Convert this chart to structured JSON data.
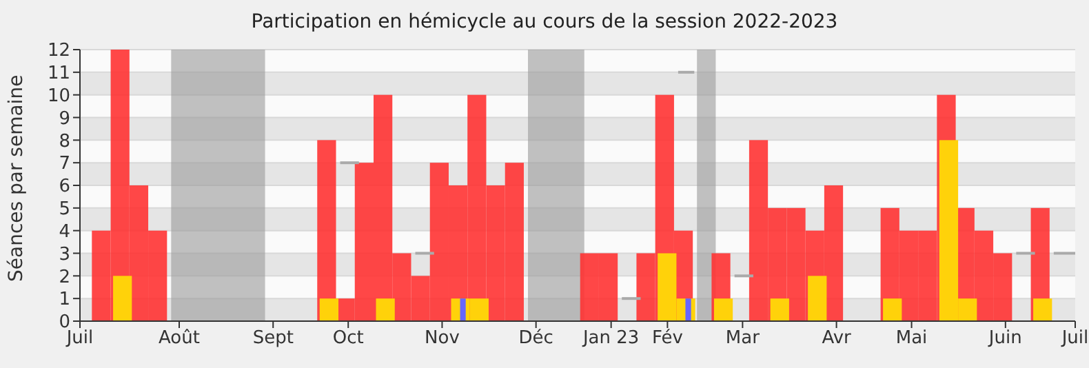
{
  "chart_data": {
    "type": "bar",
    "title": "Participation en hémicycle au cours de la session 2022-2023",
    "ylabel": "Séances par semaine",
    "x": [
      "2022-07-07",
      "2022-07-14",
      "2022-07-21",
      "2022-07-28",
      "2022-08-04",
      "2022-08-11",
      "2022-08-18",
      "2022-08-25",
      "2022-09-01",
      "2022-09-08",
      "2022-09-15",
      "2022-09-22",
      "2022-09-29",
      "2022-10-06",
      "2022-10-13",
      "2022-10-20",
      "2022-10-27",
      "2022-11-03",
      "2022-11-10",
      "2022-11-17",
      "2022-11-24",
      "2022-12-01",
      "2022-12-08",
      "2022-12-15",
      "2022-12-22",
      "2022-12-29",
      "2023-01-05",
      "2023-01-12",
      "2023-01-19",
      "2023-01-26",
      "2023-02-02",
      "2023-02-09",
      "2023-02-16",
      "2023-02-23",
      "2023-03-02",
      "2023-03-09",
      "2023-03-16",
      "2023-03-23",
      "2023-03-30",
      "2023-04-06",
      "2023-04-13",
      "2023-04-20",
      "2023-04-27",
      "2023-05-04",
      "2023-05-11",
      "2023-05-18",
      "2023-05-25",
      "2023-06-01",
      "2023-06-08",
      "2023-06-15",
      "2023-06-22"
    ],
    "series": [
      {
        "color": "#ff3333",
        "values": [
          4,
          12,
          6,
          4,
          null,
          null,
          null,
          null,
          null,
          null,
          null,
          null,
          8,
          1,
          7,
          10,
          3,
          2,
          7,
          6,
          10,
          6,
          7,
          null,
          null,
          null,
          3,
          3,
          null,
          3,
          10,
          4,
          null,
          3,
          null,
          8,
          5,
          5,
          4,
          6,
          null,
          null,
          5,
          4,
          4,
          10,
          5,
          4,
          3,
          null,
          5
        ]
      },
      {
        "color": "#ffd20a",
        "values": [
          null,
          2,
          null,
          null,
          null,
          null,
          null,
          null,
          null,
          null,
          null,
          null,
          1,
          null,
          null,
          1,
          null,
          null,
          null,
          1,
          1,
          null,
          null,
          null,
          null,
          null,
          null,
          null,
          null,
          null,
          3,
          1,
          null,
          1,
          null,
          null,
          1,
          null,
          2,
          null,
          null,
          null,
          1,
          null,
          null,
          8,
          1,
          null,
          null,
          null,
          1
        ]
      },
      {
        "color": "#6666ff",
        "values": [
          null,
          null,
          null,
          null,
          null,
          null,
          null,
          null,
          null,
          null,
          null,
          null,
          null,
          null,
          null,
          null,
          null,
          null,
          null,
          1,
          null,
          null,
          null,
          null,
          null,
          null,
          null,
          null,
          null,
          null,
          null,
          1,
          null,
          null,
          null,
          null,
          null,
          null,
          null,
          null,
          null,
          null,
          null,
          null,
          null,
          null,
          null,
          null,
          null,
          null,
          null
        ]
      },
      {
        "type": "line",
        "color": "#aaaaaa",
        "x": [
          "2022-10-03",
          "2022-10-10"
        ],
        "values": [
          7,
          7
        ]
      },
      {
        "type": "line",
        "color": "#aaaaaa",
        "x": [
          "2022-10-31",
          "2022-11-07"
        ],
        "values": [
          3,
          3
        ]
      },
      {
        "type": "line",
        "color": "#aaaaaa",
        "x": [
          "2023-01-16",
          "2023-01-23"
        ],
        "values": [
          1,
          1
        ]
      },
      {
        "type": "line",
        "color": "#aaaaaa",
        "x": [
          "2023-02-06",
          "2023-02-12"
        ],
        "values": [
          11,
          11
        ]
      },
      {
        "type": "line",
        "color": "#aaaaaa",
        "x": [
          "2023-02-27",
          "2023-03-06"
        ],
        "values": [
          2,
          2
        ]
      },
      {
        "type": "line",
        "color": "#aaaaaa",
        "x": [
          "2023-06-12",
          "2023-06-19"
        ],
        "values": [
          3,
          3
        ]
      },
      {
        "type": "line",
        "color": "#aaaaaa",
        "x": [
          "2023-06-26",
          "2023-07-04"
        ],
        "values": [
          3,
          3
        ]
      }
    ],
    "bands": [
      {
        "axis": "x",
        "from": "2022-08-01",
        "to": "2022-09-05",
        "color": "#999999"
      },
      {
        "axis": "x",
        "from": "2022-12-12",
        "to": "2023-01-02",
        "color": "#999999"
      },
      {
        "axis": "x",
        "from": "2023-02-13",
        "to": "2023-02-20",
        "color": "#999999"
      }
    ],
    "xlim": [
      "2022-06-28",
      "2023-07-04"
    ],
    "xticks": [
      {
        "value": "2022-06-28",
        "label": "Juil"
      },
      {
        "value": "2022-08-04",
        "label": "Août"
      },
      {
        "value": "2022-09-08",
        "label": "Sept"
      },
      {
        "value": "2022-10-06",
        "label": "Oct"
      },
      {
        "value": "2022-11-10",
        "label": "Nov"
      },
      {
        "value": "2022-12-15",
        "label": "Déc"
      },
      {
        "value": "2023-01-12",
        "label": "Jan 23"
      },
      {
        "value": "2023-02-02",
        "label": "Fév"
      },
      {
        "value": "2023-03-02",
        "label": "Mar"
      },
      {
        "value": "2023-04-06",
        "label": "Avr"
      },
      {
        "value": "2023-05-04",
        "label": "Mai"
      },
      {
        "value": "2023-06-08",
        "label": "Juin"
      },
      {
        "value": "2023-07-04",
        "label": "Juil"
      }
    ],
    "ylim": [
      0,
      12
    ],
    "yticks": [
      0,
      1,
      2,
      3,
      4,
      5,
      6,
      7,
      8,
      9,
      10,
      11,
      12
    ],
    "grid": "y"
  }
}
